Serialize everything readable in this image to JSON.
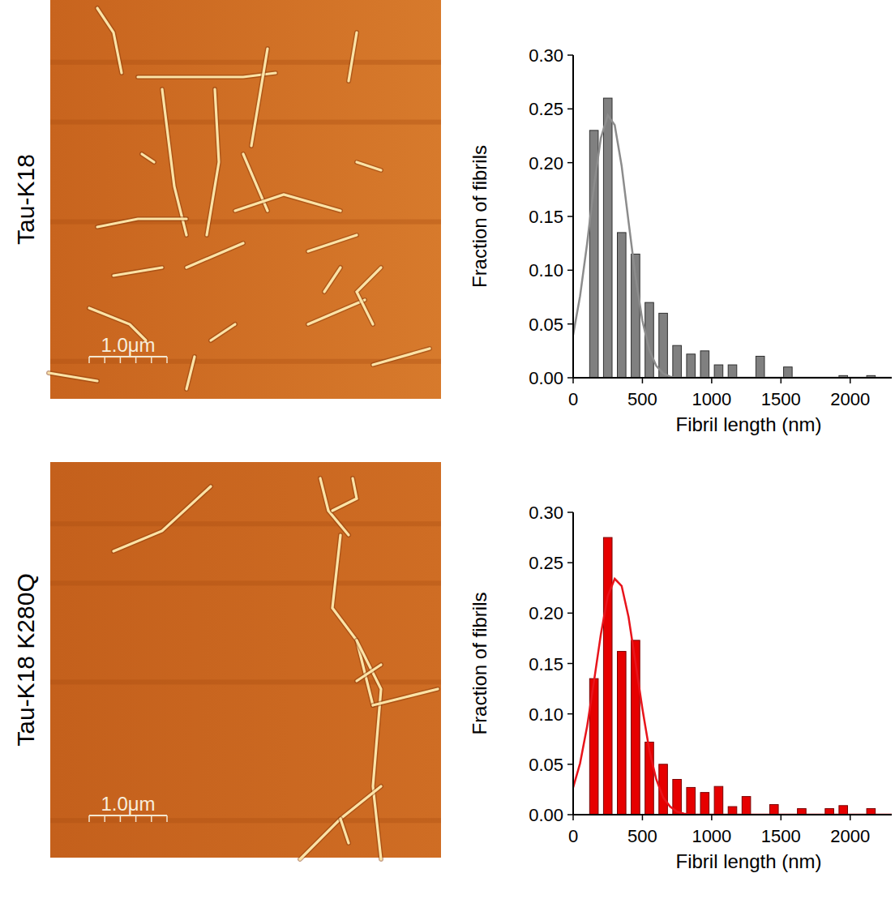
{
  "chart_data": [
    {
      "type": "histogram",
      "title": "Tau-K18",
      "annotations": [
        "1.0μm"
      ],
      "x_label": "Fibril length (nm)",
      "y_label": "Fraction of fibrils",
      "bins": [
        100,
        200,
        300,
        400,
        500,
        600,
        700,
        800,
        900,
        1000,
        1100,
        1200,
        1300,
        1400,
        1500,
        1600,
        1700,
        1800,
        1900,
        2000,
        2100,
        2200
      ],
      "values": [
        0.23,
        0.26,
        0.135,
        0.115,
        0.07,
        0.06,
        0.03,
        0.022,
        0.025,
        0.012,
        0.012,
        0,
        0.02,
        0,
        0.01,
        0,
        0,
        0,
        0.002,
        0,
        0.002
      ],
      "color": "#808080",
      "series": [
        {
          "type": "line",
          "color": "#8c8c8c",
          "x": [
            0,
            50,
            100,
            150,
            200,
            250,
            300,
            350,
            400,
            450,
            500,
            550,
            600,
            650,
            700,
            750,
            800,
            2300
          ],
          "values": [
            0.04,
            0.076,
            0.124,
            0.178,
            0.223,
            0.244,
            0.235,
            0.197,
            0.145,
            0.094,
            0.053,
            0.026,
            0.011,
            0.004,
            0.001,
            0,
            0,
            0
          ]
        }
      ],
      "xlim": [
        0,
        2300
      ],
      "ylim": [
        0,
        0.3
      ],
      "xticks": [
        0,
        500,
        1000,
        1500,
        2000
      ],
      "yticks": [
        {
          "value": 0,
          "label": "0.00"
        },
        {
          "value": 0.05,
          "label": "0.05"
        },
        {
          "value": 0.1,
          "label": "0.10"
        },
        {
          "value": 0.15,
          "label": "0.15"
        },
        {
          "value": 0.2,
          "label": "0.20"
        },
        {
          "value": 0.25,
          "label": "0.25"
        },
        {
          "value": 0.3,
          "label": "0.30"
        }
      ],
      "grid": false
    },
    {
      "type": "histogram",
      "title": "Tau-K18 K280Q",
      "annotations": [
        "1.0μm"
      ],
      "x_label": "Fibril length (nm)",
      "y_label": "Fraction of fibrils",
      "bins": [
        100,
        200,
        300,
        400,
        500,
        600,
        700,
        800,
        900,
        1000,
        1100,
        1200,
        1300,
        1400,
        1500,
        1600,
        1700,
        1800,
        1900,
        2000,
        2100,
        2200
      ],
      "values": [
        0.135,
        0.275,
        0.162,
        0.173,
        0.072,
        0.05,
        0.035,
        0.027,
        0.022,
        0.028,
        0.008,
        0.018,
        0,
        0.01,
        0,
        0.006,
        0,
        0.006,
        0.009,
        0,
        0.006
      ],
      "color": "#e60000",
      "series": [
        {
          "type": "line",
          "color": "#e8141b",
          "x": [
            0,
            50,
            100,
            150,
            200,
            250,
            300,
            350,
            400,
            450,
            500,
            550,
            600,
            650,
            700,
            750,
            800,
            850,
            2300
          ],
          "values": [
            0.027,
            0.051,
            0.087,
            0.132,
            0.179,
            0.217,
            0.234,
            0.227,
            0.196,
            0.151,
            0.105,
            0.064,
            0.035,
            0.017,
            0.008,
            0.003,
            0.001,
            0,
            0
          ]
        }
      ],
      "xlim": [
        0,
        2300
      ],
      "ylim": [
        0,
        0.3
      ],
      "xticks": [
        0,
        500,
        1000,
        1500,
        2000
      ],
      "yticks": [
        {
          "value": 0,
          "label": "0.00"
        },
        {
          "value": 0.05,
          "label": "0.05"
        },
        {
          "value": 0.1,
          "label": "0.10"
        },
        {
          "value": 0.15,
          "label": "0.15"
        },
        {
          "value": 0.2,
          "label": "0.20"
        },
        {
          "value": 0.25,
          "label": "0.25"
        },
        {
          "value": 0.3,
          "label": "0.30"
        }
      ],
      "grid": false
    }
  ]
}
